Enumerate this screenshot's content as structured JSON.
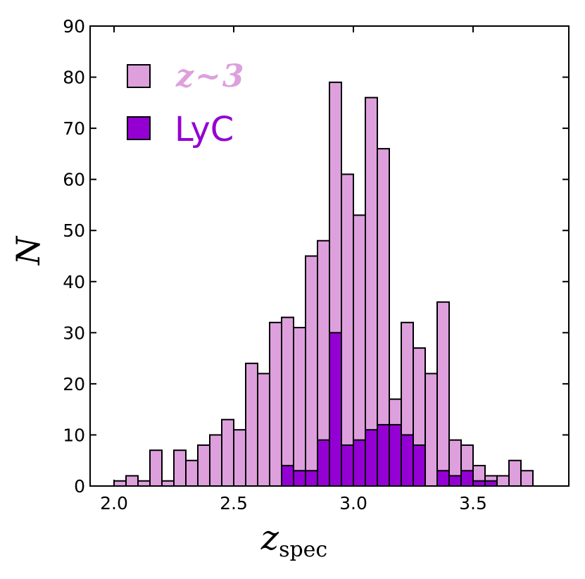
{
  "chart_data": {
    "type": "bar",
    "xlabel": "z",
    "xlabel_sub": "spec",
    "ylabel": "N",
    "xlim": [
      1.9,
      3.9
    ],
    "ylim": [
      0,
      90
    ],
    "xticks": [
      2.0,
      2.5,
      3.0,
      3.5
    ],
    "xtick_labels": [
      "2.0",
      "2.5",
      "3.0",
      "3.5"
    ],
    "yticks": [
      0,
      10,
      20,
      30,
      40,
      50,
      60,
      70,
      80,
      90
    ],
    "ytick_labels": [
      "0",
      "10",
      "20",
      "30",
      "40",
      "50",
      "60",
      "70",
      "80",
      "90"
    ],
    "bin_start": 2.0,
    "bin_width": 0.05,
    "series": [
      {
        "name": "z~3",
        "label_main": "z",
        "label_sym": "~",
        "label_num": "3",
        "color": "#dda0dd",
        "values": [
          1,
          2,
          1,
          7,
          1,
          7,
          5,
          8,
          10,
          13,
          11,
          24,
          22,
          32,
          33,
          31,
          45,
          48,
          79,
          61,
          53,
          76,
          66,
          17,
          32,
          27,
          22,
          36,
          9,
          8,
          4,
          2,
          2,
          5,
          3
        ]
      },
      {
        "name": "LyC",
        "label_main": "LyC",
        "color": "#9400d3",
        "values": [
          0,
          0,
          0,
          0,
          0,
          0,
          0,
          0,
          0,
          0,
          0,
          0,
          0,
          0,
          4,
          3,
          3,
          9,
          30,
          8,
          9,
          11,
          12,
          12,
          10,
          8,
          0,
          3,
          2,
          3,
          1,
          1,
          0,
          0,
          0
        ]
      }
    ],
    "legend": "top-left"
  }
}
